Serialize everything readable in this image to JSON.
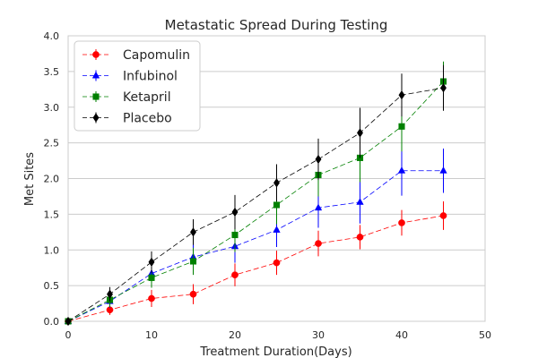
{
  "chart_data": {
    "type": "line",
    "title": "Metastatic Spread During Testing",
    "xlabel": "Treatment Duration(Days)",
    "ylabel": "Met Sites",
    "xlim": [
      0,
      50
    ],
    "ylim": [
      0.0,
      4.0
    ],
    "xticks": [
      0,
      10,
      20,
      30,
      40,
      50
    ],
    "yticks": [
      0.0,
      0.5,
      1.0,
      1.5,
      2.0,
      2.5,
      3.0,
      3.5,
      4.0
    ],
    "xtick_labels": [
      "0",
      "10",
      "20",
      "30",
      "40",
      "50"
    ],
    "ytick_labels": [
      "0.0",
      "0.5",
      "1.0",
      "1.5",
      "2.0",
      "2.5",
      "3.0",
      "3.5",
      "4.0"
    ],
    "grid": "horizontal",
    "legend_position": "top-left",
    "x": [
      0,
      5,
      10,
      15,
      20,
      25,
      30,
      35,
      40,
      45
    ],
    "series": [
      {
        "name": "Capomulin",
        "color": "#ff0000",
        "marker": "circle",
        "values": [
          0.0,
          0.16,
          0.32,
          0.38,
          0.65,
          0.82,
          1.09,
          1.18,
          1.38,
          1.48
        ],
        "errors": [
          0.0,
          0.07,
          0.12,
          0.14,
          0.16,
          0.17,
          0.18,
          0.17,
          0.18,
          0.2
        ]
      },
      {
        "name": "Infubinol",
        "color": "#0000ff",
        "marker": "triangle",
        "values": [
          0.0,
          0.28,
          0.67,
          0.9,
          1.05,
          1.28,
          1.59,
          1.67,
          2.11,
          2.11
        ],
        "errors": [
          0.0,
          0.09,
          0.15,
          0.2,
          0.23,
          0.24,
          0.28,
          0.3,
          0.35,
          0.31
        ]
      },
      {
        "name": "Ketapril",
        "color": "#008000",
        "marker": "square",
        "values": [
          0.0,
          0.3,
          0.61,
          0.84,
          1.21,
          1.63,
          2.05,
          2.29,
          2.73,
          3.36
        ],
        "errors": [
          0.0,
          0.1,
          0.14,
          0.19,
          0.24,
          0.27,
          0.3,
          0.34,
          0.35,
          0.28
        ]
      },
      {
        "name": "Placebo",
        "color": "#000000",
        "marker": "diamond",
        "values": [
          0.0,
          0.38,
          0.83,
          1.25,
          1.53,
          1.94,
          2.27,
          2.64,
          3.17,
          3.27
        ],
        "errors": [
          0.0,
          0.1,
          0.15,
          0.18,
          0.24,
          0.26,
          0.29,
          0.35,
          0.3,
          0.32
        ]
      }
    ]
  }
}
